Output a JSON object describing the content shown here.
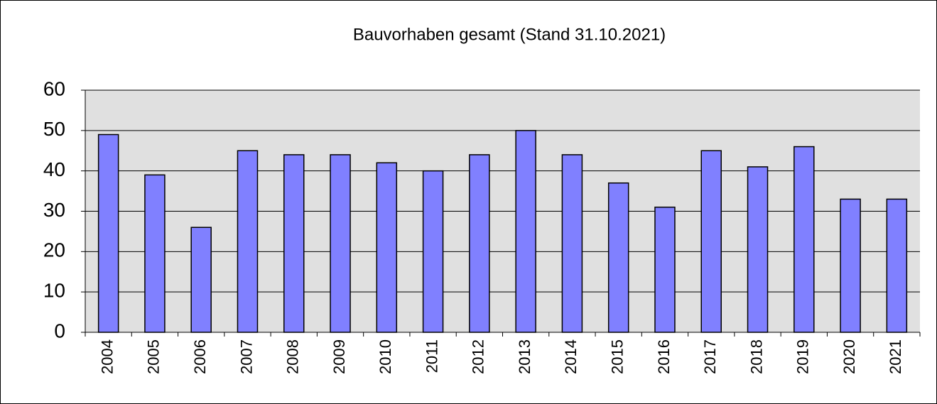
{
  "chart_data": {
    "type": "bar",
    "title": "Bauvorhaben gesamt (Stand 31.10.2021)",
    "categories": [
      "2004",
      "2005",
      "2006",
      "2007",
      "2008",
      "2009",
      "2010",
      "2011",
      "2012",
      "2013",
      "2014",
      "2015",
      "2016",
      "2017",
      "2018",
      "2019",
      "2020",
      "2021"
    ],
    "values": [
      49,
      39,
      26,
      45,
      44,
      44,
      42,
      40,
      44,
      50,
      44,
      37,
      31,
      45,
      41,
      46,
      33,
      33
    ],
    "color": "#8080ff",
    "ylim": [
      0,
      60
    ],
    "yticks": [
      0,
      10,
      20,
      30,
      40,
      50,
      60
    ],
    "grid": true
  }
}
